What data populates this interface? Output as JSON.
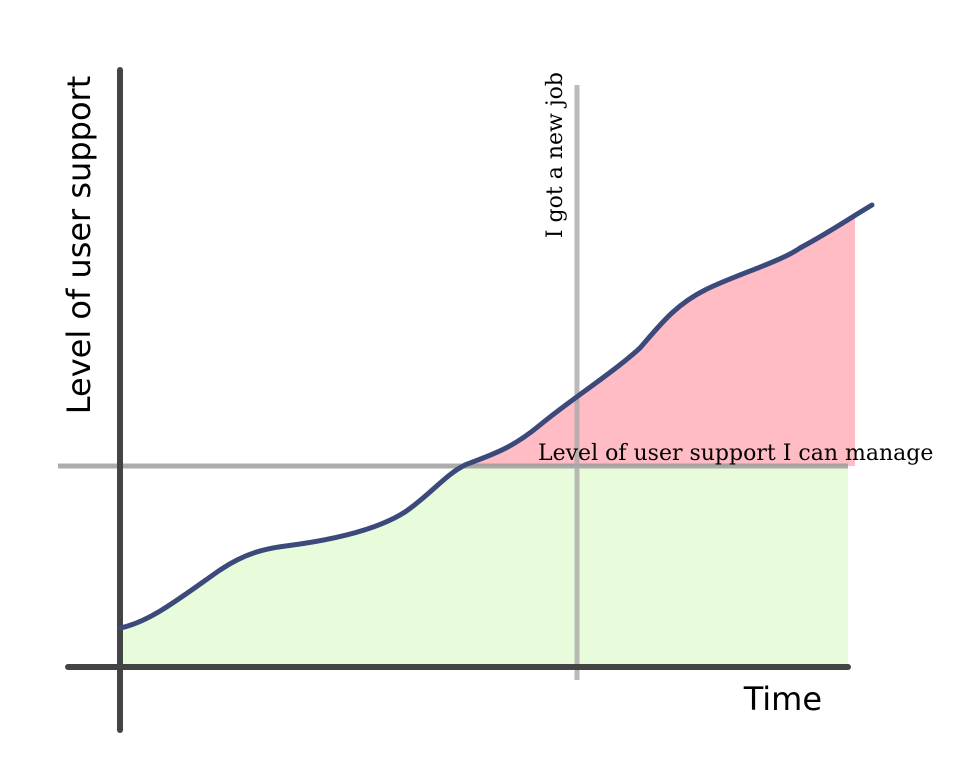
{
  "diagram": {
    "y_axis_label": "Level of user support",
    "x_axis_label": "Time",
    "vertical_annotation": "I got a new job",
    "horizontal_annotation": "Level of user support I can manage"
  }
}
